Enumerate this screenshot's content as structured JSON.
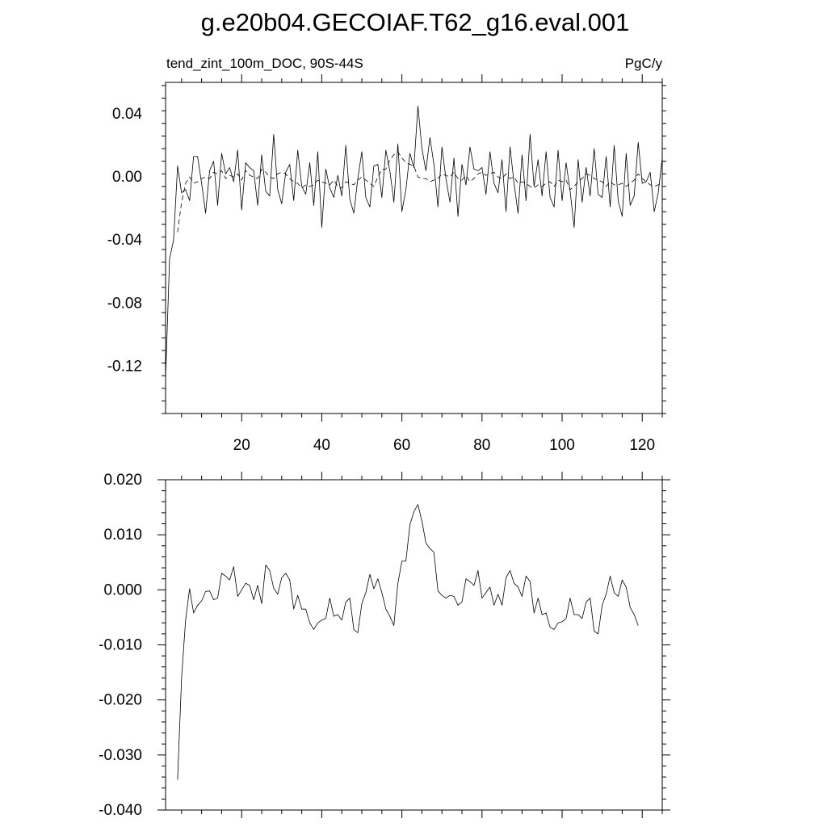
{
  "title": "g.e20b04.GECOIAF.T62_g16.eval.001",
  "colors": {
    "line": "#000000",
    "background": "#ffffff"
  },
  "chart_data": [
    {
      "type": "line",
      "title": "",
      "left_label": "tend_zint_100m_DOC, 90S-44S",
      "right_label": "PgC/y",
      "xlim": [
        1,
        125
      ],
      "ylim": [
        -0.15,
        0.06
      ],
      "x_ticks": [
        20,
        40,
        60,
        80,
        100,
        120
      ],
      "x_tick_labels": [
        "20",
        "40",
        "60",
        "80",
        "100",
        "120"
      ],
      "y_ticks": [
        0.04,
        0.0,
        -0.04,
        -0.08,
        -0.12
      ],
      "y_tick_labels": [
        "0.04",
        "0.00",
        "-0.04",
        "-0.08",
        "-0.12"
      ],
      "x_start": 1,
      "series": [
        {
          "style": "solid",
          "values": [
            -0.128,
            -0.052,
            -0.04,
            0.007,
            -0.01,
            -0.008,
            -0.015,
            0.013,
            0.013,
            -0.004,
            -0.023,
            0.004,
            0.01,
            -0.018,
            0.015,
            0.002,
            0.006,
            -0.003,
            0.017,
            -0.021,
            0.009,
            0.006,
            0.004,
            -0.018,
            0.014,
            -0.009,
            -0.012,
            0.027,
            -0.008,
            -0.017,
            0.003,
            0.008,
            -0.015,
            0.017,
            -0.006,
            -0.011,
            0.009,
            -0.018,
            0.016,
            -0.032,
            0.005,
            -0.007,
            -0.013,
            0.001,
            -0.012,
            0.02,
            -0.014,
            -0.023,
            -0.001,
            0.016,
            -0.013,
            -0.019,
            0.007,
            0.008,
            -0.013,
            0.017,
            0.004,
            -0.016,
            0.021,
            -0.022,
            -0.008,
            0.015,
            0.006,
            0.045,
            0.018,
            0.004,
            0.025,
            0.008,
            -0.019,
            0.019,
            -0.001,
            -0.016,
            0.012,
            -0.025,
            0.008,
            -0.005,
            0.019,
            0.005,
            0.004,
            0.006,
            -0.011,
            0.016,
            -0.004,
            -0.01,
            0.011,
            -0.022,
            0.019,
            -0.004,
            -0.023,
            0.014,
            -0.015,
            0.027,
            -0.006,
            0.011,
            -0.012,
            0.016,
            -0.013,
            -0.019,
            0.017,
            -0.015,
            0.009,
            -0.009,
            -0.032,
            0.011,
            -0.016,
            0.006,
            -0.012,
            0.018,
            -0.011,
            -0.013,
            0.013,
            -0.019,
            0.02,
            -0.015,
            -0.025,
            0.015,
            -0.018,
            -0.012,
            0.022,
            -0.004,
            -0.003,
            0.003,
            -0.022,
            -0.01,
            0.012
          ]
        },
        {
          "style": "dashed",
          "values": [
            null,
            null,
            null,
            -0.035,
            -0.016,
            -0.004,
            0.0,
            -0.004,
            -0.003,
            -0.001,
            0.0,
            -0.001,
            0.003,
            0.002,
            0.004,
            -0.001,
            0.001,
            0.0,
            0.002,
            -0.002,
            0.004,
            0.001,
            0.0,
            -0.001,
            0.005,
            0.003,
            0.0,
            -0.001,
            0.002,
            0.003,
            0.002,
            -0.001,
            -0.003,
            -0.004,
            -0.007,
            -0.005,
            -0.006,
            -0.005,
            -0.002,
            -0.003,
            -0.004,
            -0.005,
            -0.002,
            -0.006,
            -0.007,
            -0.003,
            -0.004,
            -0.005,
            -0.002,
            0.0,
            -0.002,
            -0.004,
            -0.006,
            0.0,
            0.005,
            0.005,
            0.011,
            0.014,
            0.016,
            0.012,
            0.009,
            0.008,
            0.007,
            0.0,
            -0.001,
            -0.001,
            -0.003,
            -0.002,
            -0.001,
            0.002,
            0.001,
            0.0,
            0.003,
            -0.001,
            -0.002,
            0.001,
            -0.003,
            -0.001,
            0.002,
            0.003,
            0.001,
            0.002,
            0.003,
            0.0,
            -0.001,
            0.002,
            -0.001,
            0.0,
            -0.004,
            -0.003,
            -0.004,
            -0.006,
            -0.007,
            -0.005,
            -0.006,
            -0.004,
            -0.003,
            -0.006,
            -0.002,
            -0.003,
            -0.002,
            -0.008,
            -0.006,
            -0.003,
            -0.001,
            0.002,
            0.001,
            -0.001,
            -0.002,
            -0.003,
            -0.006,
            -0.003,
            -0.005,
            -0.005,
            -0.004,
            -0.006,
            -0.004,
            -0.002,
            0.002,
            -0.001,
            -0.003,
            -0.005,
            -0.006,
            -0.005,
            -0.004
          ]
        }
      ]
    },
    {
      "type": "line",
      "title": "",
      "xlim": [
        1,
        125
      ],
      "ylim": [
        -0.04,
        0.02
      ],
      "x_ticks": [
        5,
        20,
        40,
        60,
        80,
        100,
        120
      ],
      "y_ticks": [
        0.02,
        0.01,
        0.0,
        -0.01,
        -0.02,
        -0.03,
        -0.04
      ],
      "y_tick_labels": [
        "0.020",
        "0.010",
        "0.000",
        "-0.010",
        "-0.020",
        "-0.030",
        "-0.040"
      ],
      "x_start": 4,
      "series": [
        {
          "style": "solid",
          "values": [
            -0.0345,
            -0.016,
            -0.0055,
            0.0002,
            -0.0042,
            -0.0028,
            -0.002,
            -0.0003,
            -0.0002,
            -0.0018,
            -0.0015,
            0.003,
            0.0025,
            0.0018,
            0.0042,
            -0.0012,
            0.0,
            0.0012,
            0.0008,
            -0.0018,
            0.0008,
            -0.0025,
            0.0045,
            0.0035,
            0.0003,
            -0.0008,
            0.0022,
            0.003,
            0.0018,
            -0.0035,
            -0.001,
            -0.0035,
            -0.0035,
            -0.006,
            -0.0072,
            -0.006,
            -0.0055,
            -0.0052,
            -0.0015,
            -0.0048,
            -0.0045,
            -0.0055,
            -0.0022,
            -0.0015,
            -0.0072,
            -0.0078,
            -0.0025,
            -0.0005,
            0.0028,
            0.0002,
            0.002,
            -0.0005,
            -0.0035,
            -0.0048,
            -0.0065,
            0.0012,
            0.0052,
            0.0052,
            0.0118,
            0.0142,
            0.0155,
            0.0125,
            0.0085,
            0.0075,
            0.0068,
            -0.0002,
            -0.001,
            -0.0015,
            -0.001,
            -0.0012,
            -0.0028,
            -0.0022,
            0.002,
            0.0015,
            0.0008,
            0.0035,
            -0.0015,
            -0.0005,
            0.0005,
            -0.0028,
            -0.0008,
            -0.0028,
            0.0022,
            0.0035,
            0.0012,
            0.0005,
            -0.0012,
            0.0025,
            0.0015,
            -0.0042,
            -0.0015,
            -0.0045,
            -0.0042,
            -0.0068,
            -0.0072,
            -0.006,
            -0.0058,
            -0.0052,
            -0.0015,
            -0.0045,
            -0.0045,
            -0.0052,
            -0.0022,
            -0.0015,
            -0.0075,
            -0.008,
            -0.0028,
            -0.0008,
            0.0025,
            -0.0005,
            -0.0012,
            0.0018,
            0.0005,
            -0.0032,
            -0.0045,
            -0.0065
          ]
        }
      ]
    }
  ]
}
